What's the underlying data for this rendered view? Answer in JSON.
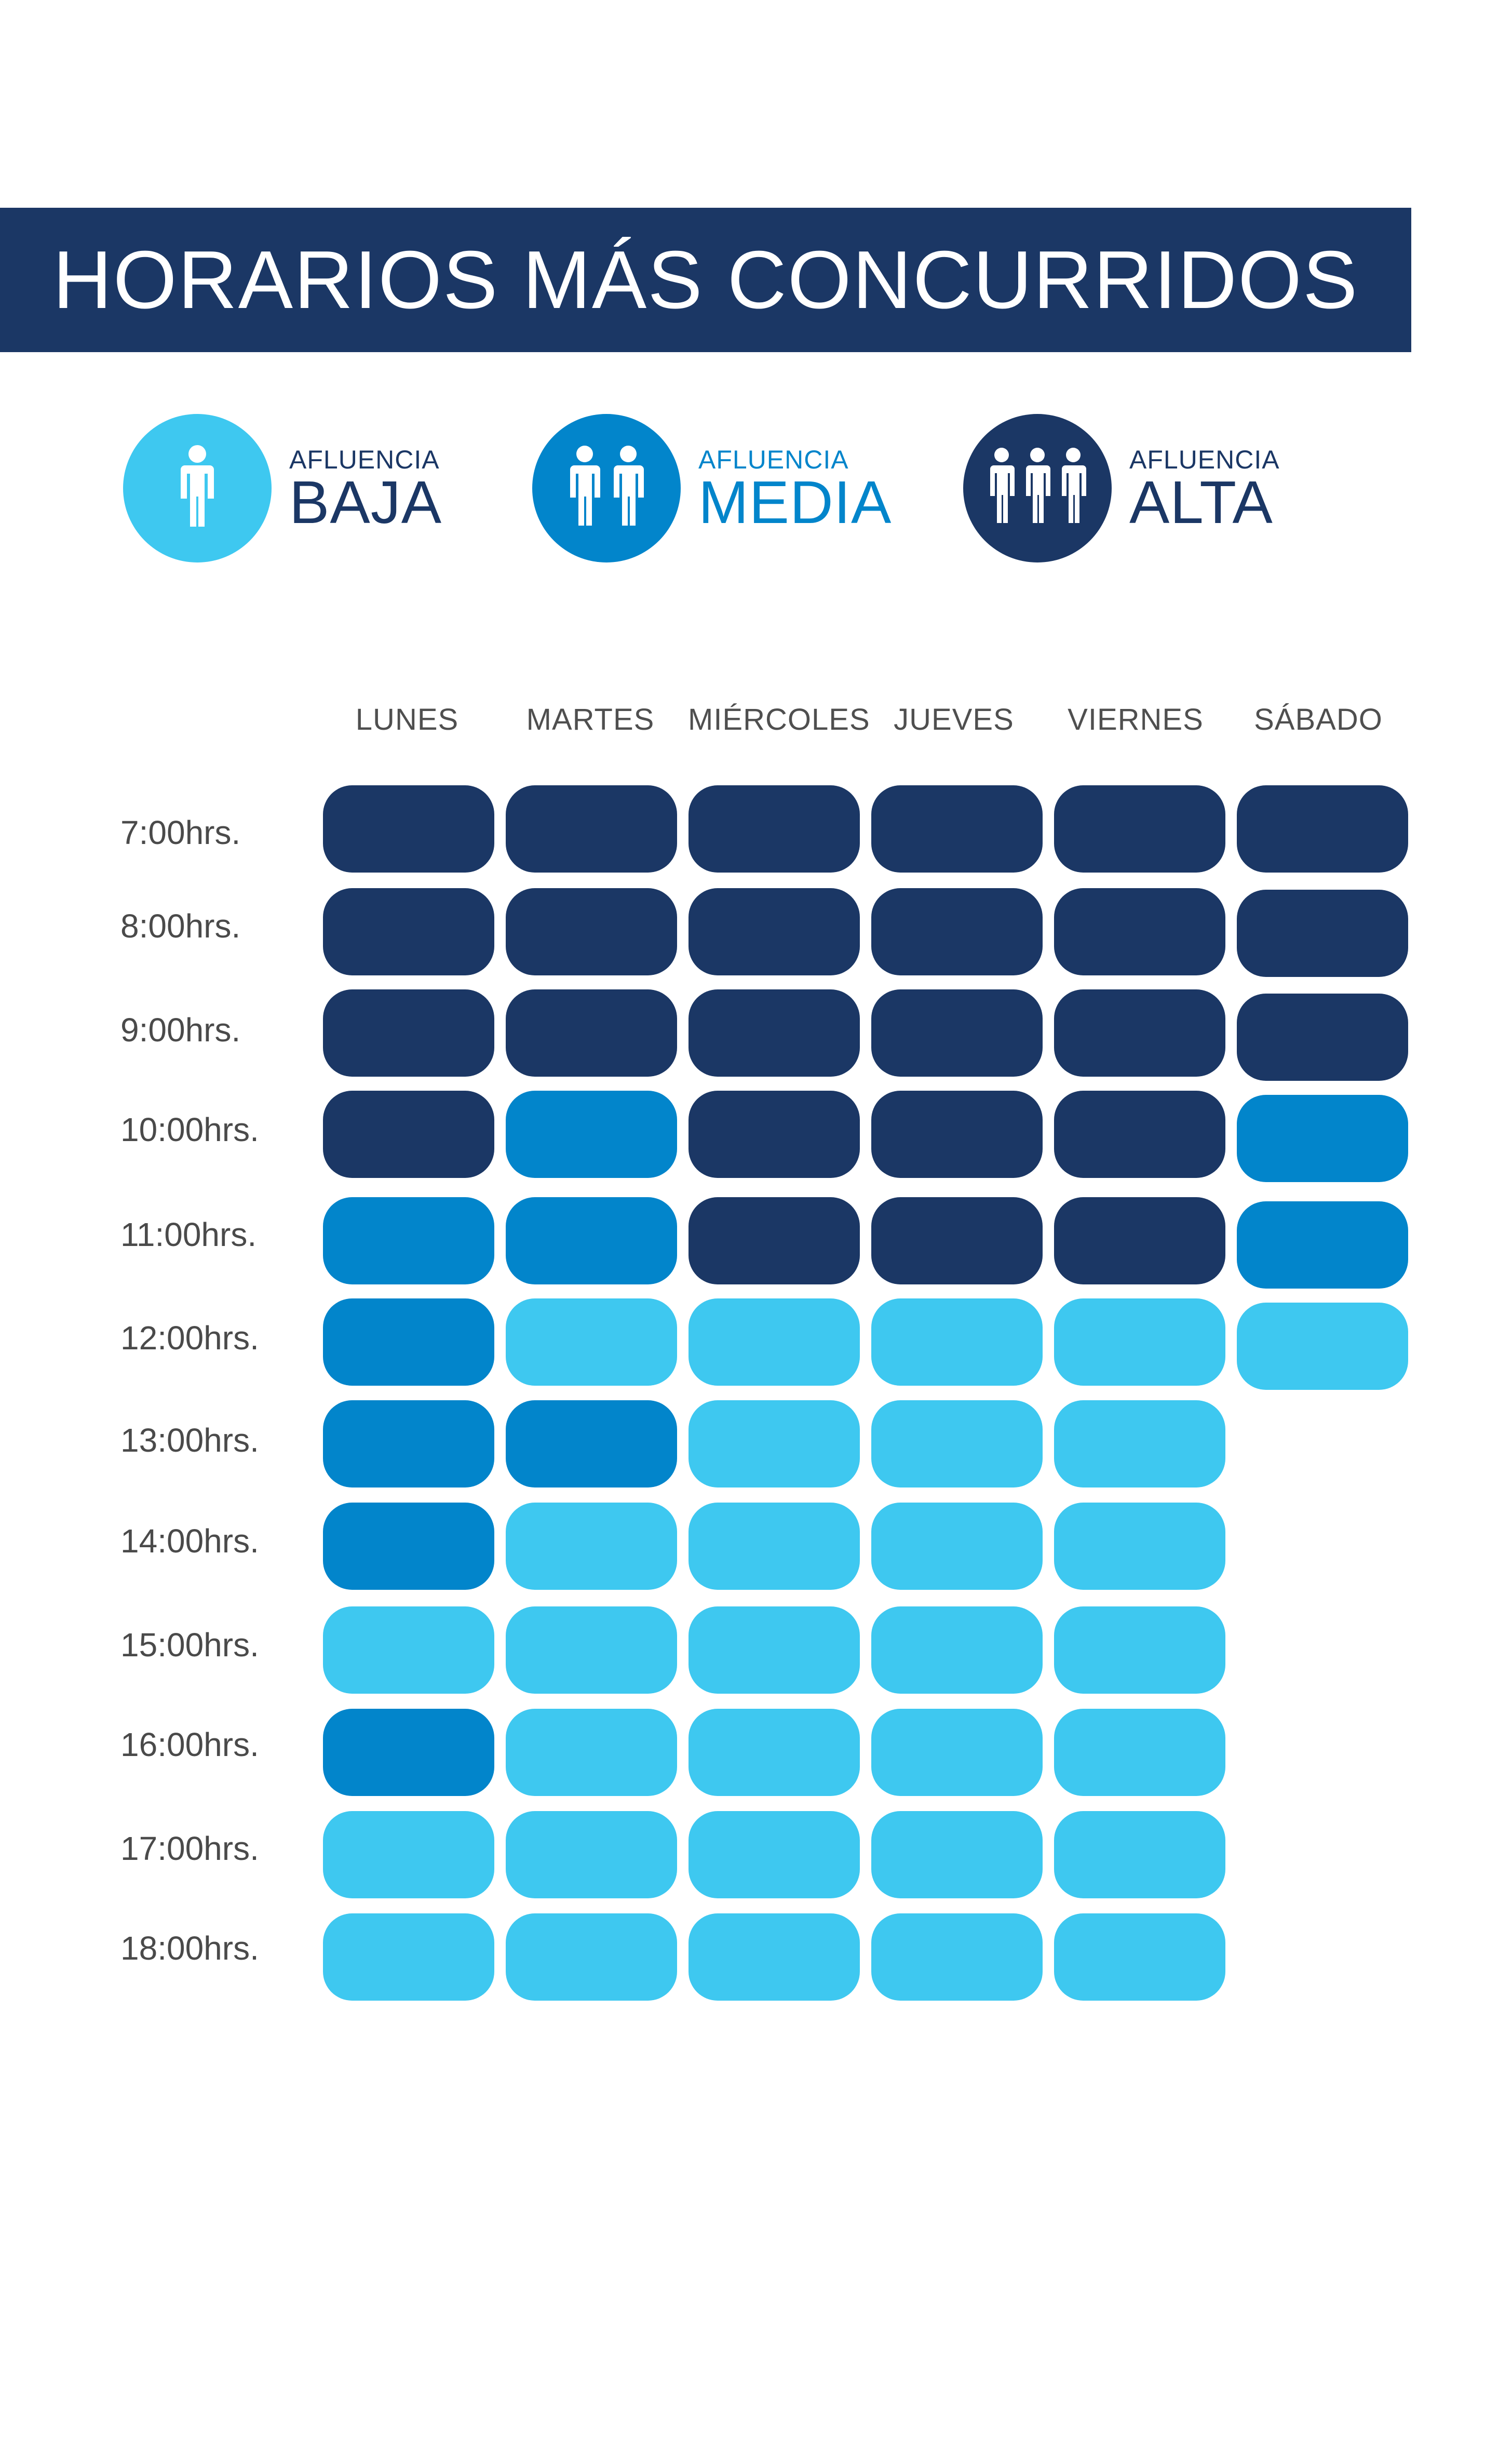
{
  "title": "HORARIOS MÁS CONCURRIDOS",
  "colors": {
    "banner": "#1b3765",
    "baja": "#3ec8f0",
    "media": "#0285cb",
    "alta": "#1b3765"
  },
  "legend": [
    {
      "key": "baja",
      "small": "AFLUENCIA",
      "big": "BAJA",
      "icon": "one-person-icon"
    },
    {
      "key": "media",
      "small": "AFLUENCIA",
      "big": "MEDIA",
      "icon": "two-people-icon"
    },
    {
      "key": "alta",
      "small": "AFLUENCIA",
      "big": "ALTA",
      "icon": "three-people-icon"
    }
  ],
  "chart_data": {
    "type": "heatmap",
    "title": "HORARIOS MÁS CONCURRIDOS",
    "columns": [
      "LUNES",
      "MARTES",
      "MIÉRCOLES",
      "JUEVES",
      "VIERNES",
      "SÁBADO"
    ],
    "rows": [
      "7:00hrs.",
      "8:00hrs.",
      "9:00hrs.",
      "10:00hrs.",
      "11:00hrs.",
      "12:00hrs.",
      "13:00hrs.",
      "14:00hrs.",
      "15:00hrs.",
      "16:00hrs.",
      "17:00hrs.",
      "18:00hrs."
    ],
    "levels": [
      "baja",
      "media",
      "alta"
    ],
    "values": [
      [
        "alta",
        "alta",
        "alta",
        "alta",
        "alta",
        "alta"
      ],
      [
        "alta",
        "alta",
        "alta",
        "alta",
        "alta",
        "alta"
      ],
      [
        "alta",
        "alta",
        "alta",
        "alta",
        "alta",
        "alta"
      ],
      [
        "alta",
        "media",
        "alta",
        "alta",
        "alta",
        "media"
      ],
      [
        "media",
        "media",
        "alta",
        "alta",
        "alta",
        "media"
      ],
      [
        "media",
        "baja",
        "baja",
        "baja",
        "baja",
        "baja"
      ],
      [
        "media",
        "media",
        "baja",
        "baja",
        "baja",
        null
      ],
      [
        "media",
        "baja",
        "baja",
        "baja",
        "baja",
        null
      ],
      [
        "baja",
        "baja",
        "baja",
        "baja",
        "baja",
        null
      ],
      [
        "media",
        "baja",
        "baja",
        "baja",
        "baja",
        null
      ],
      [
        "baja",
        "baja",
        "baja",
        "baja",
        "baja",
        null
      ],
      [
        "baja",
        "baja",
        "baja",
        "baja",
        "baja",
        null
      ]
    ]
  }
}
